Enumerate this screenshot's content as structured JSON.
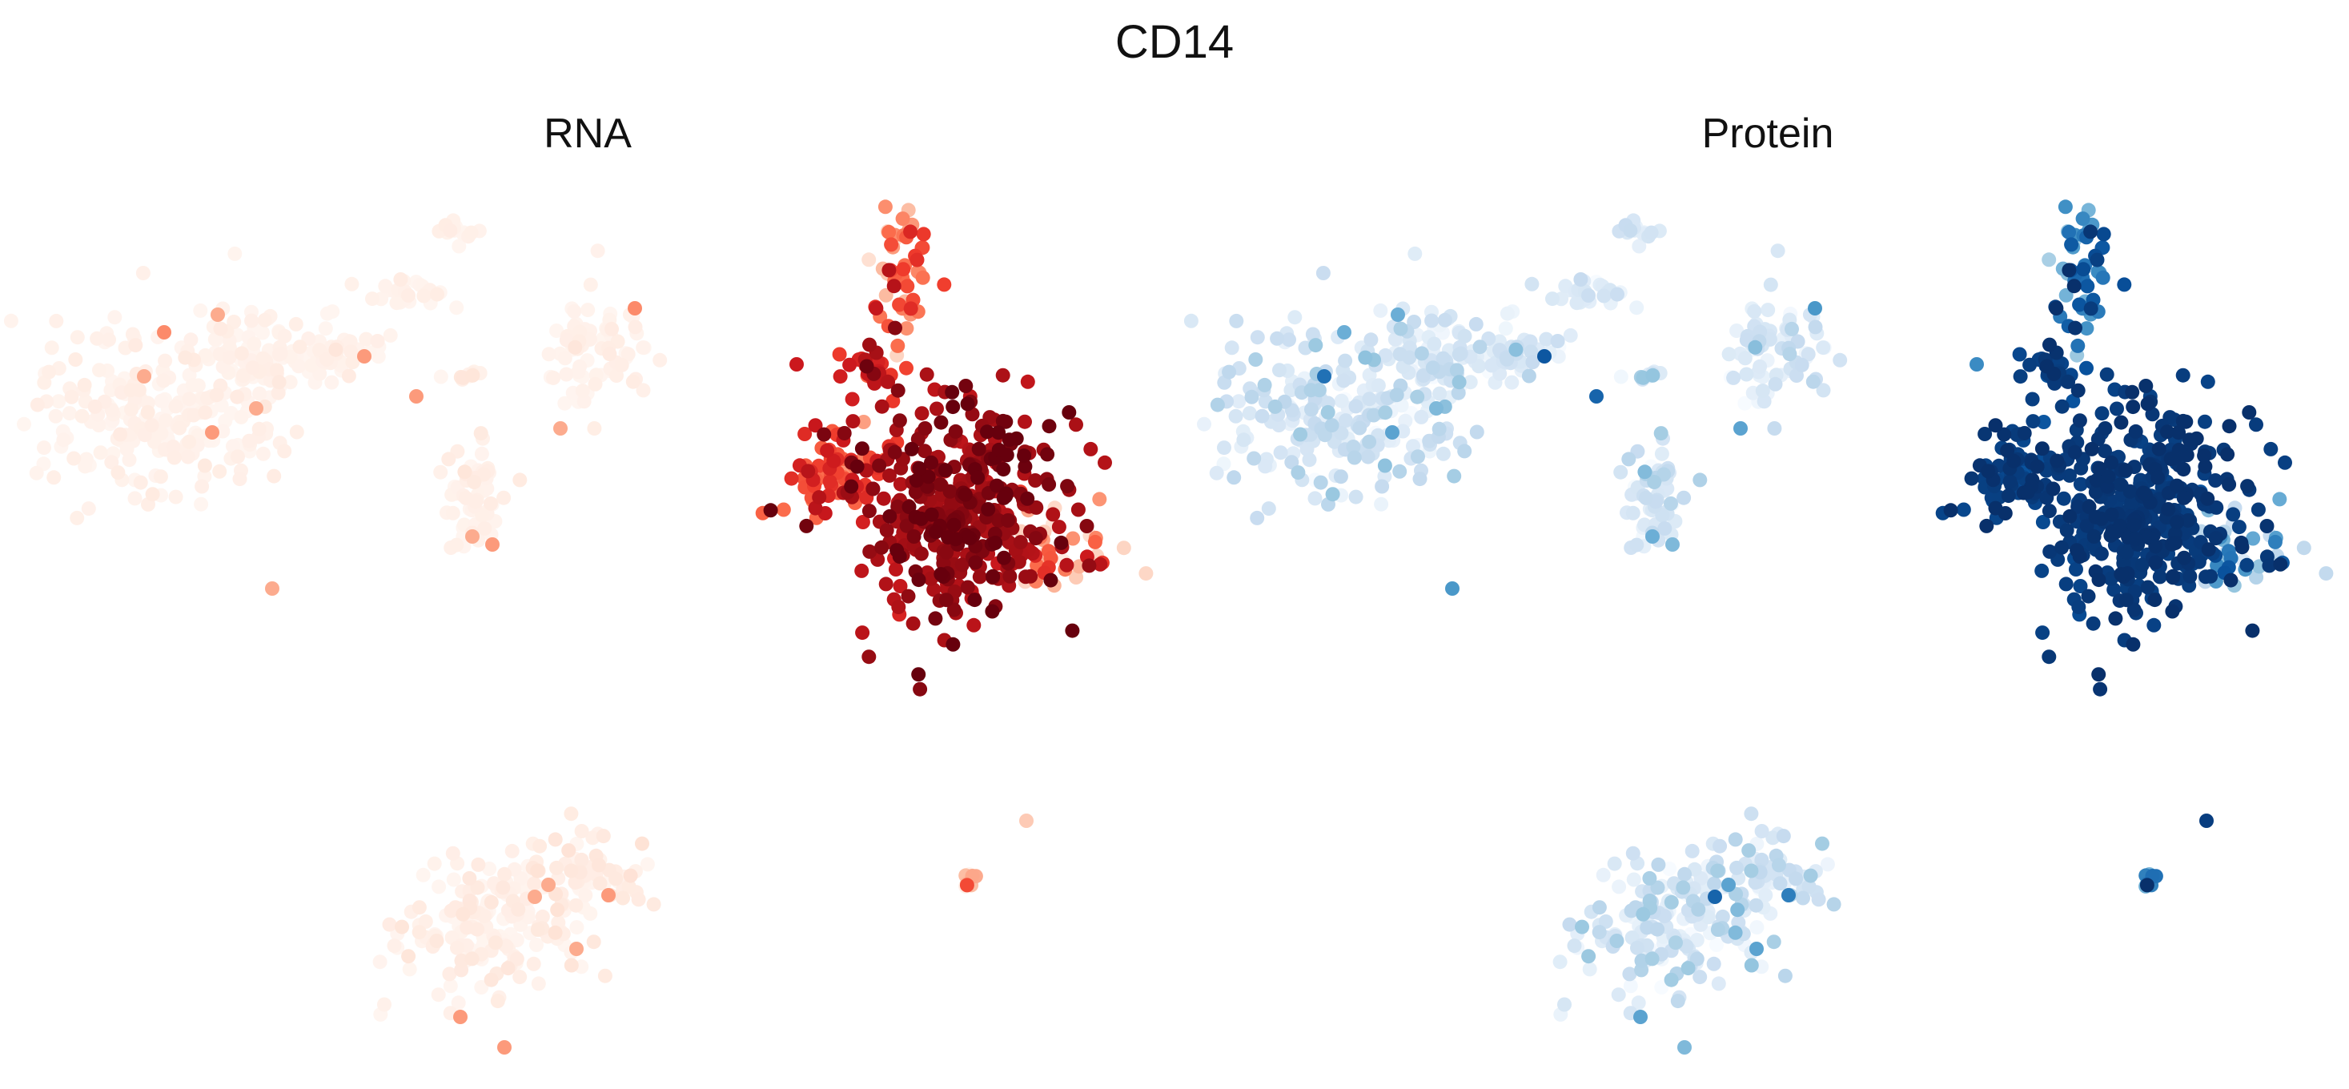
{
  "figure": {
    "title": "CD14"
  },
  "chart_data": [
    {
      "type": "scatter",
      "title": "RNA",
      "colormap": "Reds",
      "palette": [
        "#fff5f0",
        "#fee0d2",
        "#fcbba1",
        "#fc9272",
        "#fb6a4a",
        "#ef3b2c",
        "#cb181d",
        "#a50f15",
        "#67000d"
      ],
      "axes_visible": false,
      "grid": false,
      "legend": "none"
    },
    {
      "type": "scatter",
      "title": "Protein",
      "colormap": "Blues",
      "palette": [
        "#f7fbff",
        "#deebf7",
        "#c6dbef",
        "#9ecae1",
        "#6baed6",
        "#4292c6",
        "#2171b5",
        "#08519c",
        "#08306b"
      ],
      "axes_visible": false,
      "grid": false,
      "legend": "none"
    }
  ]
}
